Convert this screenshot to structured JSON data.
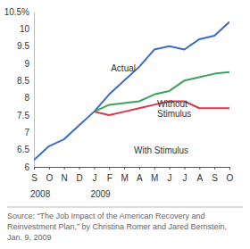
{
  "chart_data": {
    "type": "line",
    "categories": [
      "S",
      "O",
      "N",
      "D",
      "J",
      "F",
      "M",
      "A",
      "M",
      "J",
      "J",
      "A",
      "S",
      "O"
    ],
    "years": [
      "2008",
      null,
      null,
      null,
      "2009",
      null,
      null,
      null,
      null,
      null,
      null,
      null,
      null,
      null
    ],
    "series": [
      {
        "name": "Actual",
        "color": "#3a6cc8",
        "values": [
          6.2,
          6.6,
          6.8,
          7.2,
          7.6,
          8.1,
          8.5,
          8.9,
          9.4,
          9.5,
          9.4,
          9.7,
          9.8,
          10.2
        ]
      },
      {
        "name": "Without Stimulus",
        "color": "#3aa55a",
        "values": [
          null,
          null,
          null,
          null,
          7.6,
          7.8,
          7.85,
          7.9,
          8.1,
          8.2,
          8.5,
          8.6,
          8.7,
          8.75
        ]
      },
      {
        "name": "With Stimulus",
        "color": "#d9364a",
        "values": [
          null,
          null,
          null,
          null,
          7.6,
          7.5,
          7.6,
          7.7,
          7.8,
          7.9,
          7.9,
          7.7,
          7.7,
          7.7
        ]
      }
    ],
    "ylim": [
      6,
      10.5
    ],
    "yticks": [
      6,
      6.5,
      7,
      7.5,
      8,
      8.5,
      9,
      9.5,
      10,
      {
        "value": 10.5,
        "label": "10.5%"
      }
    ],
    "grid": false,
    "source": "Source: “The Job Impact of the American Recovery and Reinvestment Plan,” by Christina Romer and Jared Bernstein, Jan. 9, 2009"
  }
}
